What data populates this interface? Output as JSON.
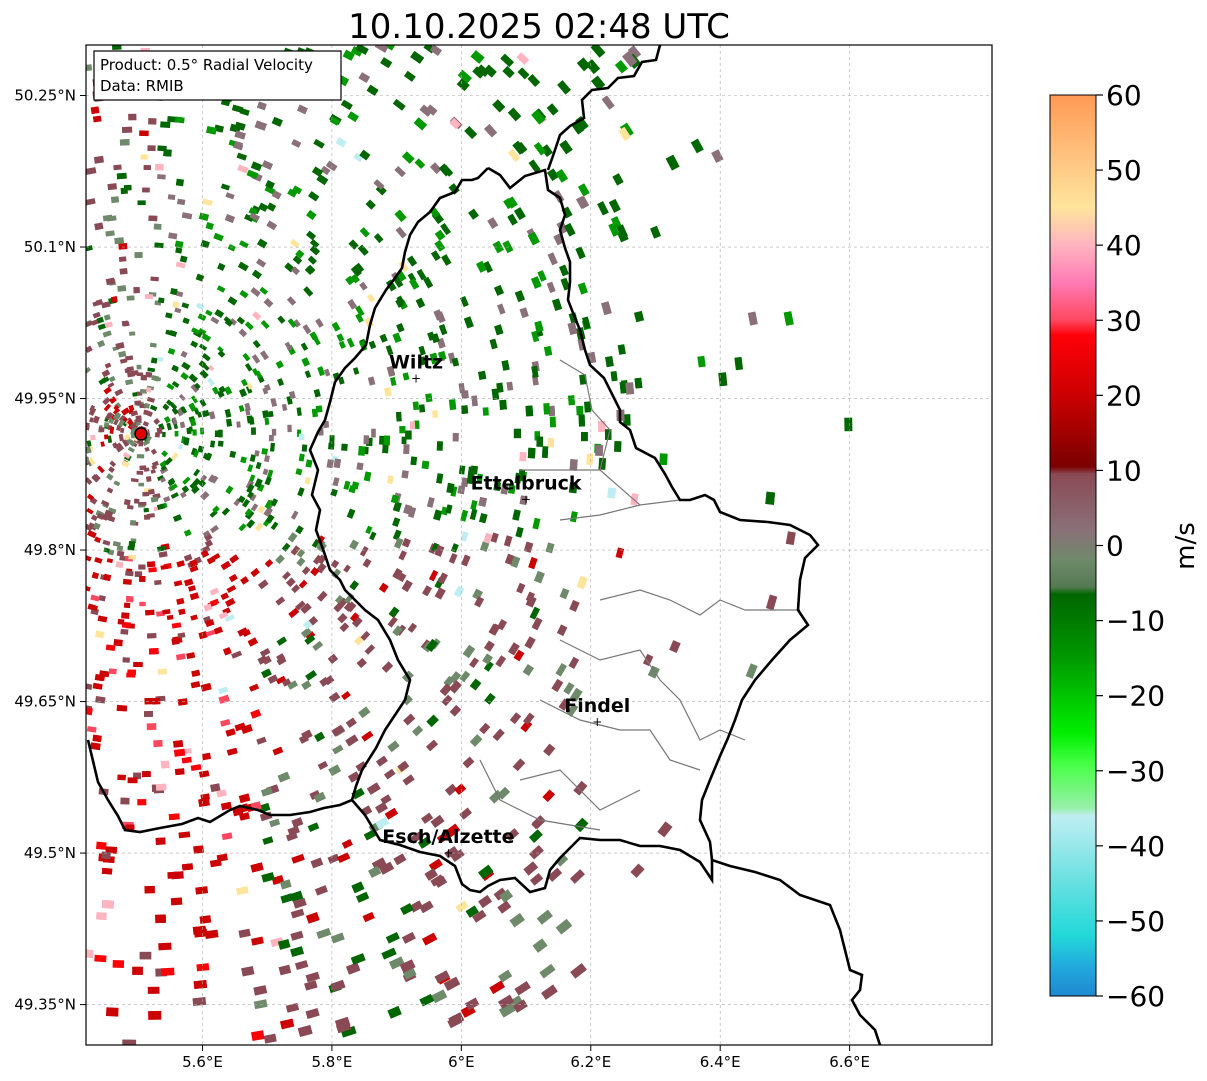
{
  "title": "10.10.2025 02:48 UTC",
  "info_box": {
    "line1": "Product: 0.5° Radial Velocity",
    "line2": "Data: RMIB"
  },
  "map": {
    "lon_range": [
      5.42,
      6.82
    ],
    "lat_range": [
      49.31,
      50.3
    ],
    "lon_ticks": [
      {
        "value": 5.6,
        "label": "5.6°E"
      },
      {
        "value": 5.8,
        "label": "5.8°E"
      },
      {
        "value": 6.0,
        "label": "6°E"
      },
      {
        "value": 6.2,
        "label": "6.2°E"
      },
      {
        "value": 6.4,
        "label": "6.4°E"
      },
      {
        "value": 6.6,
        "label": "6.6°E"
      }
    ],
    "lat_ticks": [
      {
        "value": 50.25,
        "label": "50.25°N"
      },
      {
        "value": 50.1,
        "label": "50.1°N"
      },
      {
        "value": 49.95,
        "label": "49.95°N"
      },
      {
        "value": 49.8,
        "label": "49.8°N"
      },
      {
        "value": 49.65,
        "label": "49.65°N"
      },
      {
        "value": 49.5,
        "label": "49.5°N"
      },
      {
        "value": 49.35,
        "label": "49.35°N"
      }
    ],
    "radar_site": {
      "lon": 5.505,
      "lat": 49.915
    },
    "cities": [
      {
        "name": "Wiltz",
        "lon": 5.93,
        "lat": 49.97
      },
      {
        "name": "Ettelbruck",
        "lon": 6.1,
        "lat": 49.85
      },
      {
        "name": "Findel",
        "lon": 6.21,
        "lat": 49.63
      },
      {
        "name": "Esch/Alzette",
        "lon": 5.98,
        "lat": 49.5
      }
    ]
  },
  "colorbar": {
    "label": "m/s",
    "min": -60,
    "max": 60,
    "ticks": [
      {
        "value": 60,
        "label": "60"
      },
      {
        "value": 50,
        "label": "50"
      },
      {
        "value": 40,
        "label": "40"
      },
      {
        "value": 30,
        "label": "30"
      },
      {
        "value": 20,
        "label": "20"
      },
      {
        "value": 10,
        "label": "10"
      },
      {
        "value": 0,
        "label": "0"
      },
      {
        "value": -10,
        "label": "−10"
      },
      {
        "value": -20,
        "label": "−20"
      },
      {
        "value": -30,
        "label": "−30"
      },
      {
        "value": -40,
        "label": "−40"
      },
      {
        "value": -50,
        "label": "−50"
      },
      {
        "value": -60,
        "label": "−60"
      }
    ],
    "stops": [
      {
        "value": 60,
        "color": "#ff9a55"
      },
      {
        "value": 50,
        "color": "#ffcc88"
      },
      {
        "value": 45,
        "color": "#ffe49c"
      },
      {
        "value": 40,
        "color": "#ffb4c0"
      },
      {
        "value": 35,
        "color": "#ff7ab4"
      },
      {
        "value": 30,
        "color": "#ff4860"
      },
      {
        "value": 28,
        "color": "#ff0008"
      },
      {
        "value": 20,
        "color": "#cc0000"
      },
      {
        "value": 10.5,
        "color": "#7a0000"
      },
      {
        "value": 9.5,
        "color": "#8a4a55"
      },
      {
        "value": 2,
        "color": "#8a7078"
      },
      {
        "value": -2,
        "color": "#6e8a6a"
      },
      {
        "value": -5.5,
        "color": "#557a52"
      },
      {
        "value": -6.5,
        "color": "#006600"
      },
      {
        "value": -15,
        "color": "#009900"
      },
      {
        "value": -25,
        "color": "#00ee00"
      },
      {
        "value": -29,
        "color": "#44ff44"
      },
      {
        "value": -35,
        "color": "#99f0aa"
      },
      {
        "value": -36,
        "color": "#bfeef2"
      },
      {
        "value": -45,
        "color": "#66e0e0"
      },
      {
        "value": -52,
        "color": "#22d8d8"
      },
      {
        "value": -56,
        "color": "#22aadd"
      },
      {
        "value": -60,
        "color": "#1e88d0"
      }
    ]
  }
}
